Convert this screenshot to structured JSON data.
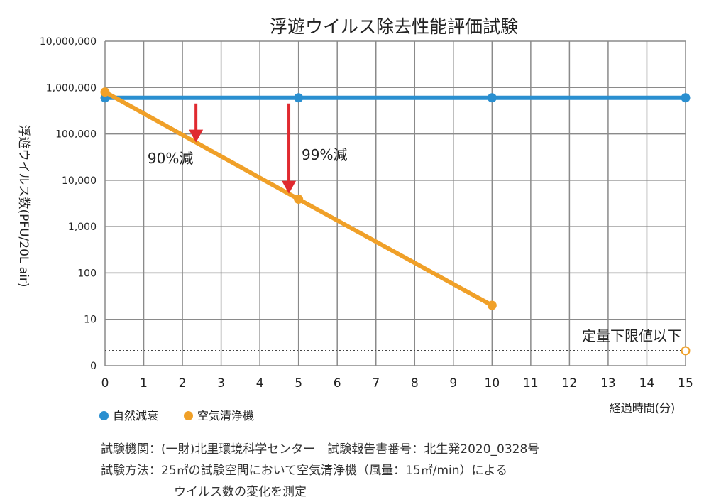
{
  "chart_data": {
    "type": "line",
    "title": "浮遊ウイルス除去性能評価試験",
    "xlabel": "経過時間(分)",
    "ylabel": "浮遊ウイルス数(PFU/20L air)",
    "yscale": "log",
    "xlim": [
      0,
      15
    ],
    "ylim": [
      1,
      10000000
    ],
    "x_ticks": [
      "0",
      "1",
      "2",
      "3",
      "4",
      "5",
      "6",
      "7",
      "8",
      "9",
      "10",
      "11",
      "12",
      "13",
      "14",
      "15"
    ],
    "y_ticks": [
      {
        "value": 10000000,
        "label": "10,000,000"
      },
      {
        "value": 1000000,
        "label": "1,000,000"
      },
      {
        "value": 100000,
        "label": "100,000"
      },
      {
        "value": 10000,
        "label": "10,000"
      },
      {
        "value": 1000,
        "label": "1,000"
      },
      {
        "value": 100,
        "label": "100"
      },
      {
        "value": 10,
        "label": "10"
      },
      {
        "value": 1,
        "label": "0"
      }
    ],
    "grid": true,
    "series": [
      {
        "name": "自然減衰",
        "color": "#2a8fd0",
        "x": [
          0,
          5,
          10,
          15
        ],
        "values": [
          600000,
          600000,
          600000,
          600000
        ]
      },
      {
        "name": "空気清浄機",
        "color": "#f0a028",
        "x": [
          0,
          5,
          10
        ],
        "values": [
          800000,
          3900,
          20
        ],
        "open_point": {
          "x": 15,
          "value": 2.1
        }
      }
    ],
    "detection_limit": {
      "value": 2.1,
      "label": "定量下限値以下"
    },
    "annotations": [
      {
        "label": "90%減",
        "arrow_x": 2.35,
        "from": 600000,
        "to": 70000,
        "color": "#e02a30"
      },
      {
        "label": "99%減",
        "arrow_x": 4.75,
        "from": 600000,
        "to": 5500,
        "color": "#e02a30"
      }
    ]
  },
  "legend": [
    "自然減衰",
    "空気清浄機"
  ],
  "footer": {
    "line1": "試験機関：(一財)北里環境科学センター　試験報告書番号：北生発2020_0328号",
    "line2": "試験方法：25㎡の試験空間において空気清浄機（風量：15㎡/min）による",
    "line3": "ウイルス数の変化を測定"
  }
}
